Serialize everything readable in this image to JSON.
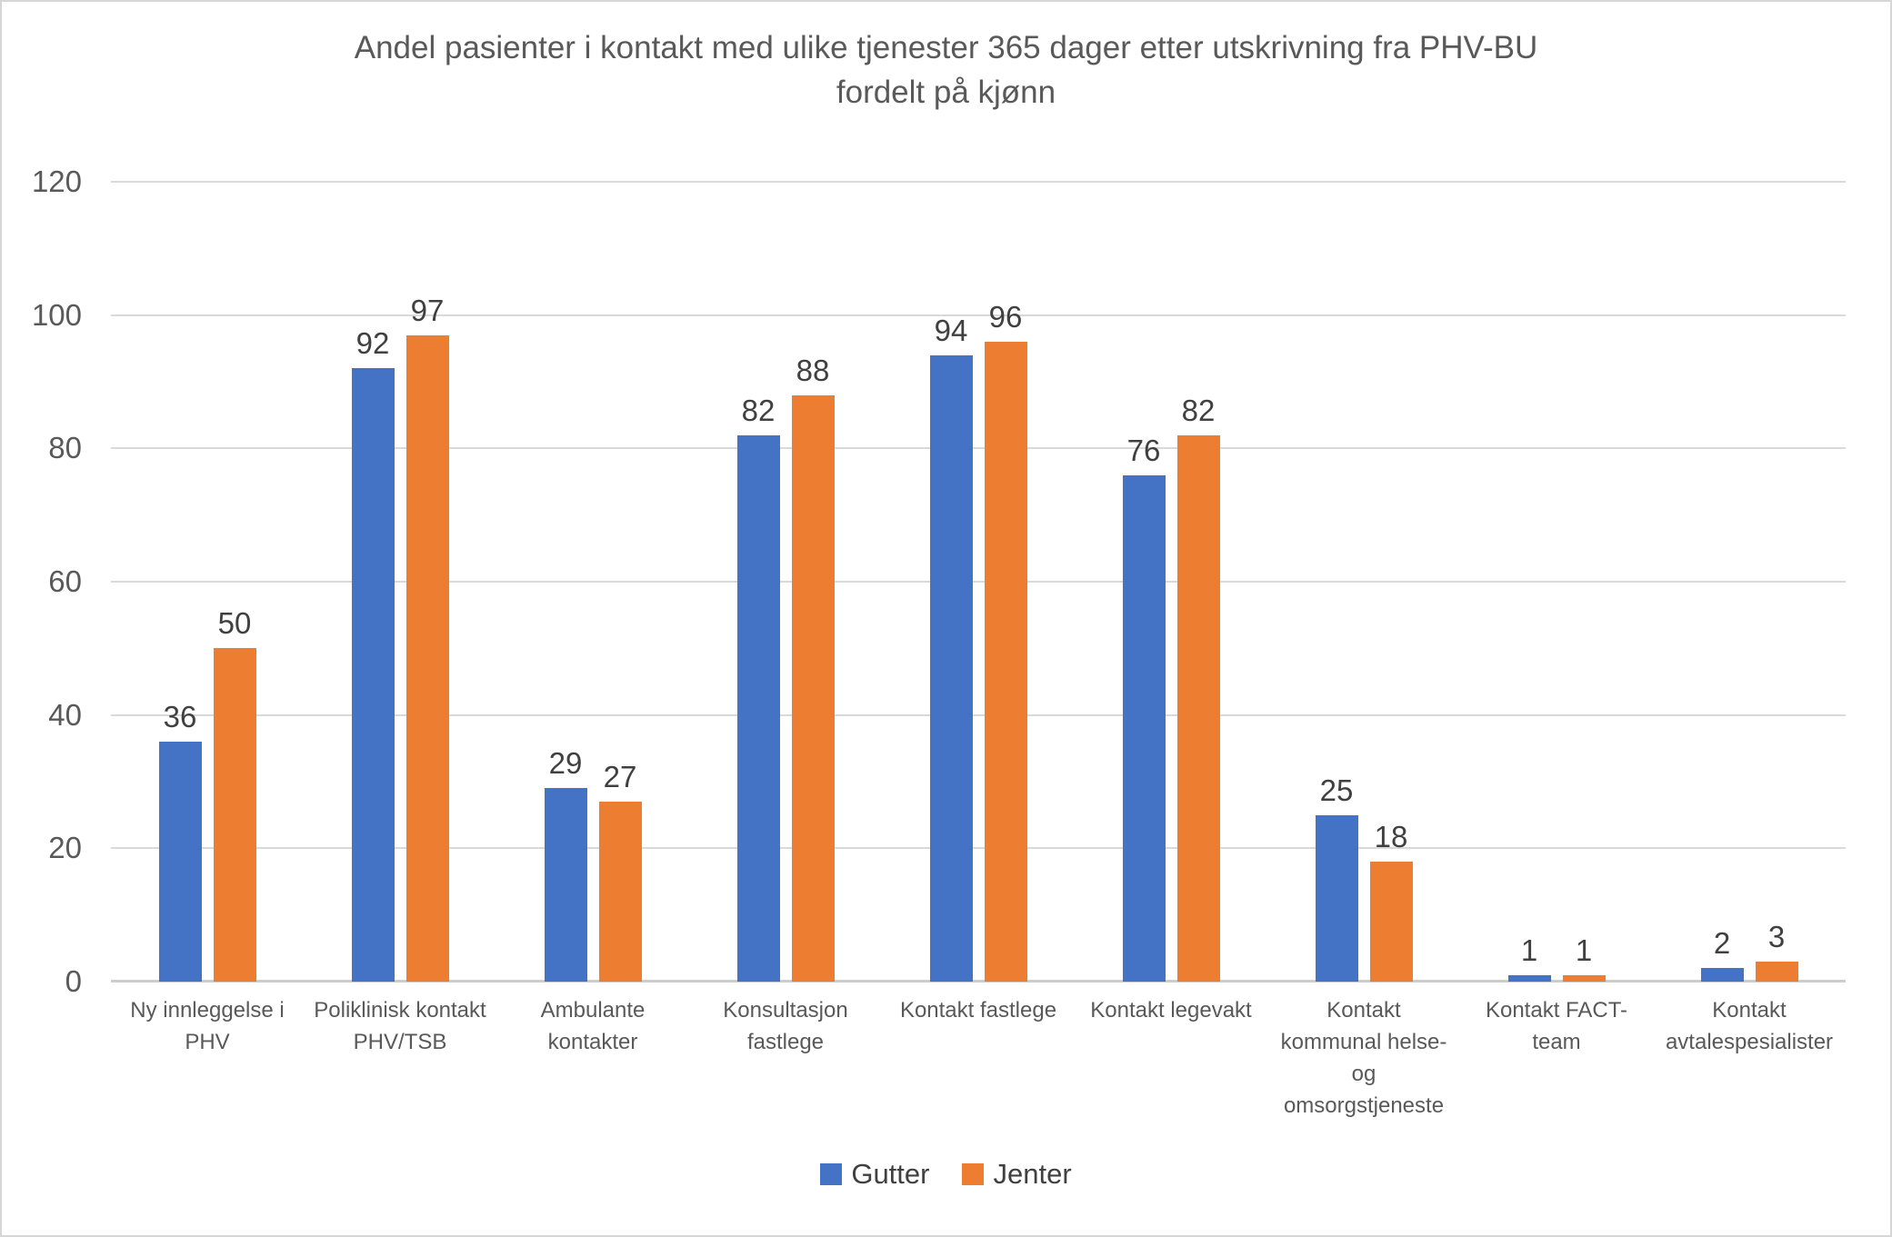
{
  "chart_data": {
    "type": "bar",
    "title": "Andel pasienter i kontakt med ulike tjenester 365 dager etter utskrivning fra PHV-BU\nfordelt på kjønn",
    "categories": [
      "Ny innleggelse i\nPHV",
      "Poliklinisk kontakt\nPHV/TSB",
      "Ambulante\nkontakter",
      "Konsultasjon\nfastlege",
      "Kontakt fastlege",
      "Kontakt legevakt",
      "Kontakt\nkommunal helse-\nog\nomsorgstjeneste",
      "Kontakt FACT-\nteam",
      "Kontakt\navtalespesialister"
    ],
    "series": [
      {
        "name": "Gutter",
        "color": "#4472C4",
        "values": [
          36,
          92,
          29,
          82,
          94,
          76,
          25,
          1,
          2
        ]
      },
      {
        "name": "Jenter",
        "color": "#ED7D31",
        "values": [
          50,
          97,
          27,
          88,
          96,
          82,
          18,
          1,
          3
        ]
      }
    ],
    "xlabel": "",
    "ylabel": "",
    "ylim": [
      0,
      120
    ],
    "yticks": [
      0,
      20,
      40,
      60,
      80,
      100,
      120
    ],
    "grid": true,
    "data_labels": true,
    "legend_position": "bottom"
  },
  "colors": {
    "background": "#FFFFFF",
    "border": "#D6D6D6",
    "gridline": "#D9D9D9",
    "baseline": "#CDCDCD",
    "title_text": "#595959",
    "axis_text": "#595959",
    "data_label_text": "#404040",
    "legend_text": "#404040"
  }
}
